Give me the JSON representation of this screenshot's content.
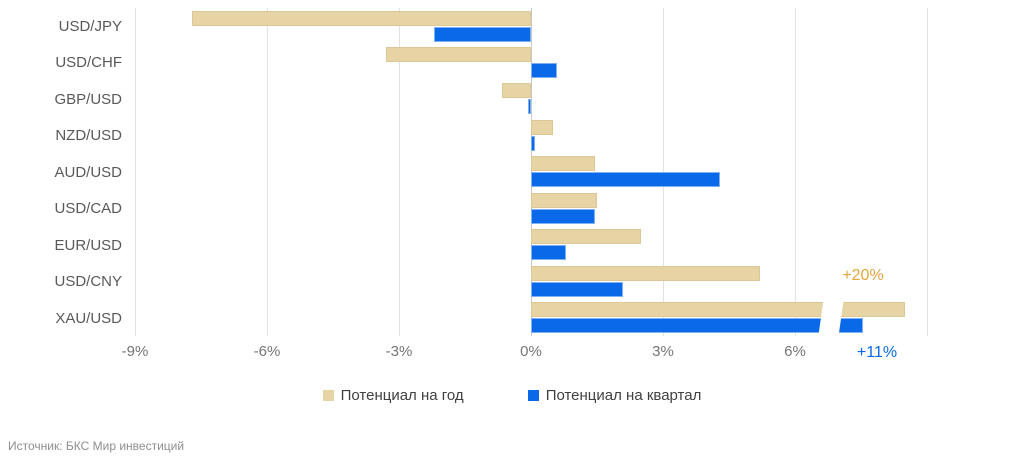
{
  "chart_data": {
    "type": "bar",
    "orientation": "horizontal",
    "title": "",
    "xlabel": "",
    "ylabel": "",
    "xlim": [
      -9,
      9
    ],
    "gridline_step": 3,
    "grid": true,
    "x_ticks": [
      "-9%",
      "-6%",
      "-3%",
      "0%",
      "3%",
      "6%"
    ],
    "categories": [
      "USD/JPY",
      "USD/CHF",
      "GBP/USD",
      "NZD/USD",
      "AUD/USD",
      "USD/CAD",
      "EUR/USD",
      "USD/CNY",
      "XAU/USD"
    ],
    "series": [
      {
        "name": "Потенциал на год",
        "color": "#e7d4a4",
        "values": [
          -7.7,
          -3.3,
          -0.65,
          0.5,
          1.45,
          1.5,
          2.5,
          5.2,
          20
        ]
      },
      {
        "name": "Потенциал на квартал",
        "color": "#0969e8",
        "values": [
          -2.2,
          0.6,
          -0.06,
          0.1,
          4.3,
          1.45,
          0.8,
          2.1,
          11
        ]
      }
    ],
    "broken_bars": [
      {
        "category_index": 8,
        "series_index": 0,
        "true_value": 20,
        "display_value": 8.5,
        "break_position": 6.6
      },
      {
        "category_index": 8,
        "series_index": 1,
        "true_value": 11,
        "display_value": 7.55,
        "break_position": 6.6
      }
    ],
    "annotations": [
      {
        "text": "+20%",
        "color": "#e2a63c",
        "refers_to": "XAU/USD Потенциал на год"
      },
      {
        "text": "+11%",
        "color": "#0969e8",
        "refers_to": "XAU/USD Потенциал на квартал"
      }
    ],
    "legend_position": "bottom"
  },
  "legend": {
    "items": [
      {
        "label": "Потенциал на год",
        "color": "#e7d4a4"
      },
      {
        "label": "Потенциал на квартал",
        "color": "#0969e8"
      }
    ]
  },
  "source": {
    "text": "Источник: БКС Мир инвестиций"
  }
}
